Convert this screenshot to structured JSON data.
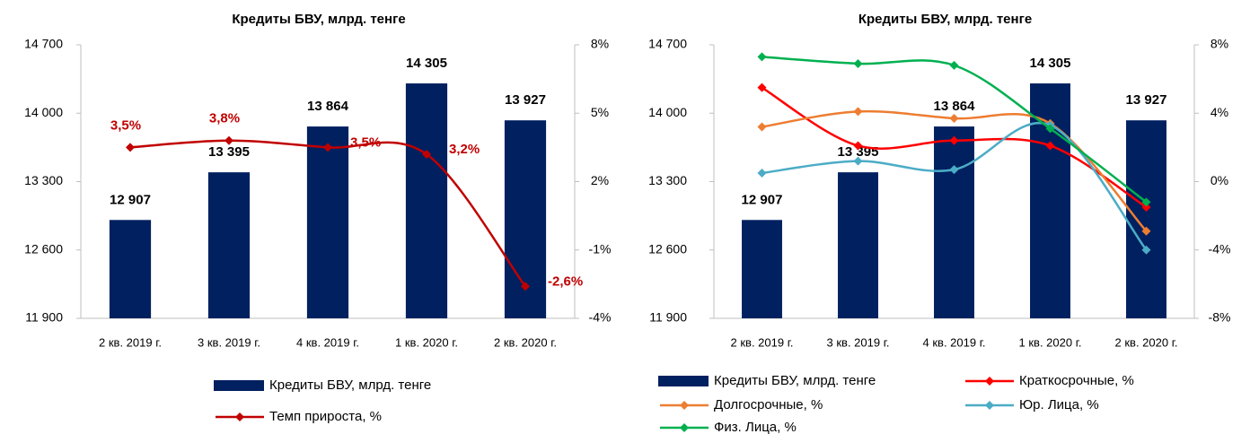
{
  "chart_data": [
    {
      "type": "combo",
      "title": "Кредиты БВУ, млрд. тенге",
      "categories": [
        "2 кв. 2019 г.",
        "3 кв. 2019 г.",
        "4 кв. 2019 г.",
        "1 кв. 2020 г.",
        "2 кв. 2020 г."
      ],
      "ylim": [
        11900,
        14700
      ],
      "yticks": [
        {
          "value": 11900,
          "label": "11 900"
        },
        {
          "value": 12600,
          "label": "12 600"
        },
        {
          "value": 13300,
          "label": "13 300"
        },
        {
          "value": 14000,
          "label": "14 000"
        },
        {
          "value": 14700,
          "label": "14 700"
        }
      ],
      "y2lim": [
        -4,
        8
      ],
      "y2ticks": [
        {
          "value": -4,
          "label": "-4%"
        },
        {
          "value": -1,
          "label": "-1%"
        },
        {
          "value": 2,
          "label": "2%"
        },
        {
          "value": 5,
          "label": "5%"
        },
        {
          "value": 8,
          "label": "8%"
        }
      ],
      "series": [
        {
          "name": "Кредиты БВУ, млрд. тенге",
          "type": "bar",
          "color": "#002060",
          "values": [
            12907,
            13395,
            13864,
            14305,
            13927
          ],
          "value_labels": [
            "12 907",
            "13 395",
            "13 864",
            "14 305",
            "13 927"
          ]
        },
        {
          "name": "Темп прироста, %",
          "type": "line",
          "axis": "y2",
          "color": "#c00000",
          "values": [
            3.5,
            3.8,
            3.5,
            3.2,
            -2.6
          ],
          "value_labels": [
            "3,5%",
            "3,8%",
            "3,5%",
            "3,2%",
            "-2,6%"
          ]
        }
      ]
    },
    {
      "type": "combo",
      "title": "Кредиты БВУ, млрд. тенге",
      "categories": [
        "2 кв. 2019 г.",
        "3 кв. 2019 г.",
        "4 кв. 2019 г.",
        "1 кв. 2020 г.",
        "2 кв. 2020 г."
      ],
      "ylim": [
        11900,
        14700
      ],
      "yticks": [
        {
          "value": 11900,
          "label": "11 900"
        },
        {
          "value": 12600,
          "label": "12 600"
        },
        {
          "value": 13300,
          "label": "13 300"
        },
        {
          "value": 14000,
          "label": "14 000"
        },
        {
          "value": 14700,
          "label": "14 700"
        }
      ],
      "y2lim": [
        -8,
        8
      ],
      "y2ticks": [
        {
          "value": -8,
          "label": "-8%"
        },
        {
          "value": -4,
          "label": "-4%"
        },
        {
          "value": 0,
          "label": "0%"
        },
        {
          "value": 4,
          "label": "4%"
        },
        {
          "value": 8,
          "label": "8%"
        }
      ],
      "series": [
        {
          "name": "Кредиты БВУ, млрд. тенге",
          "type": "bar",
          "color": "#002060",
          "values": [
            12907,
            13395,
            13864,
            14305,
            13927
          ],
          "value_labels": [
            "12 907",
            "13 395",
            "13 864",
            "14 305",
            "13 927"
          ]
        },
        {
          "name": "Краткосрочные, %",
          "type": "line",
          "axis": "y2",
          "color": "#ff0000",
          "values": [
            5.5,
            2.1,
            2.4,
            2.1,
            -1.5
          ]
        },
        {
          "name": "Долгосрочные, %",
          "type": "line",
          "axis": "y2",
          "color": "#ed7d31",
          "values": [
            3.2,
            4.1,
            3.7,
            3.4,
            -2.9
          ]
        },
        {
          "name": "Юр. Лица, %",
          "type": "line",
          "axis": "y2",
          "color": "#4bacc6",
          "values": [
            0.5,
            1.2,
            0.7,
            3.3,
            -4.0
          ]
        },
        {
          "name": "Физ. Лица, %",
          "type": "line",
          "axis": "y2",
          "color": "#00b050",
          "values": [
            7.3,
            6.9,
            6.8,
            3.1,
            -1.2
          ]
        }
      ]
    }
  ]
}
